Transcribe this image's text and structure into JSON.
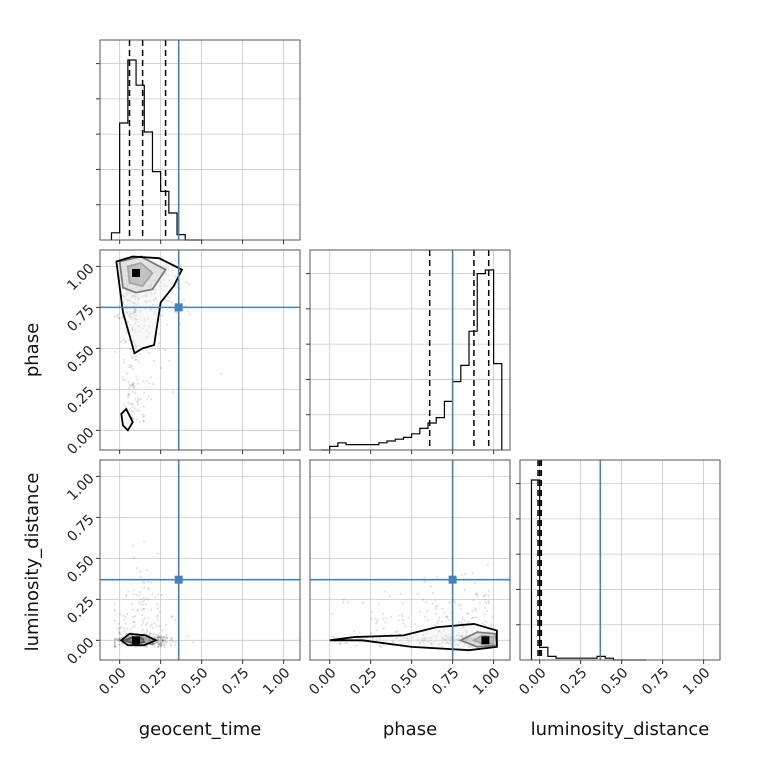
{
  "chart_data": {
    "type": "corner",
    "parameters": [
      "geocent_time",
      "phase",
      "luminosity_distance"
    ],
    "axis_labels": {
      "geocent_time": "geocent_time",
      "phase": "phase",
      "luminosity_distance": "luminosity_distance"
    },
    "ticks": {
      "values": [
        0.0,
        0.25,
        0.5,
        0.75,
        1.0
      ],
      "labels": [
        "0.00",
        "0.25",
        "0.50",
        "0.75",
        "1.00"
      ]
    },
    "range": [
      -0.12,
      1.1
    ],
    "grid": true,
    "truth": {
      "geocent_time": 0.36,
      "phase": 0.75,
      "luminosity_distance": 0.37
    },
    "truth_color": "#4682b4",
    "line_color": "#000000",
    "histograms": [
      {
        "parameter": "geocent_time",
        "bin_edges": [
          -0.05,
          0.0,
          0.05,
          0.1,
          0.15,
          0.2,
          0.25,
          0.3,
          0.35,
          0.4,
          0.45,
          0.5
        ],
        "counts": [
          0.04,
          0.65,
          1.0,
          0.86,
          0.6,
          0.38,
          0.27,
          0.15,
          0.03,
          0.0,
          0.0
        ],
        "quantiles": [
          0.06,
          0.14,
          0.28
        ]
      },
      {
        "parameter": "phase",
        "bin_edges": [
          -0.05,
          0.0,
          0.05,
          0.1,
          0.15,
          0.2,
          0.25,
          0.3,
          0.35,
          0.4,
          0.45,
          0.5,
          0.55,
          0.6,
          0.65,
          0.7,
          0.75,
          0.8,
          0.85,
          0.9,
          0.95,
          1.0,
          1.05
        ],
        "counts": [
          0.0,
          0.02,
          0.04,
          0.03,
          0.03,
          0.03,
          0.03,
          0.04,
          0.05,
          0.06,
          0.07,
          0.09,
          0.12,
          0.15,
          0.18,
          0.27,
          0.38,
          0.47,
          0.66,
          0.98,
          1.0,
          0.48
        ],
        "quantiles": [
          0.61,
          0.88,
          0.97
        ]
      },
      {
        "parameter": "luminosity_distance",
        "bin_edges": [
          -0.05,
          0.0,
          0.05,
          0.1,
          0.15,
          0.2,
          0.25,
          0.3,
          0.35,
          0.4,
          0.45,
          0.5,
          0.55,
          0.6,
          0.65
        ],
        "counts": [
          1.0,
          0.07,
          0.02,
          0.01,
          0.01,
          0.01,
          0.01,
          0.01,
          0.02,
          0.01,
          0.0,
          0.0,
          0.0,
          0.0
        ],
        "quantiles": [
          -0.01,
          0.0,
          0.01
        ]
      }
    ],
    "joint_distributions": [
      {
        "x": "geocent_time",
        "y": "phase",
        "peak": [
          0.1,
          0.96
        ],
        "contours": [
          [
            [
              0.06,
              0.9
            ],
            [
              0.14,
              0.88
            ],
            [
              0.2,
              0.96
            ],
            [
              0.13,
              1.02
            ],
            [
              0.05,
              1.0
            ],
            [
              0.06,
              0.9
            ]
          ],
          [
            [
              0.02,
              0.87
            ],
            [
              0.1,
              0.84
            ],
            [
              0.2,
              0.86
            ],
            [
              0.28,
              0.98
            ],
            [
              0.13,
              1.06
            ],
            [
              0.0,
              1.03
            ],
            [
              0.02,
              0.87
            ]
          ],
          [
            [
              -0.02,
              1.03
            ],
            [
              0.02,
              0.72
            ],
            [
              0.06,
              0.58
            ],
            [
              0.09,
              0.47
            ],
            [
              0.14,
              0.5
            ],
            [
              0.21,
              0.52
            ],
            [
              0.25,
              0.78
            ],
            [
              0.33,
              0.88
            ],
            [
              0.38,
              0.98
            ],
            [
              0.24,
              1.05
            ],
            [
              0.08,
              1.06
            ],
            [
              -0.02,
              1.03
            ]
          ],
          [
            [
              0.01,
              0.1
            ],
            [
              0.04,
              0.13
            ],
            [
              0.08,
              0.05
            ],
            [
              0.05,
              0.0
            ],
            [
              0.02,
              0.03
            ],
            [
              0.01,
              0.1
            ]
          ]
        ]
      },
      {
        "x": "geocent_time",
        "y": "luminosity_distance",
        "peak": [
          0.1,
          0.0
        ],
        "contours": [
          [
            [
              0.03,
              0.0
            ],
            [
              0.08,
              0.02
            ],
            [
              0.14,
              0.01
            ],
            [
              0.15,
              -0.01
            ],
            [
              0.09,
              -0.02
            ],
            [
              0.03,
              0.0
            ]
          ],
          [
            [
              0.01,
              0.0
            ],
            [
              0.06,
              0.04
            ],
            [
              0.16,
              0.03
            ],
            [
              0.22,
              0.0
            ],
            [
              0.15,
              -0.03
            ],
            [
              0.05,
              -0.03
            ],
            [
              0.01,
              0.0
            ]
          ]
        ]
      },
      {
        "x": "phase",
        "y": "luminosity_distance",
        "peak": [
          0.95,
          0.0
        ],
        "contours": [
          [
            [
              0.88,
              0.0
            ],
            [
              0.93,
              0.03
            ],
            [
              1.0,
              0.02
            ],
            [
              1.0,
              -0.02
            ],
            [
              0.93,
              -0.02
            ],
            [
              0.88,
              0.0
            ]
          ],
          [
            [
              0.8,
              0.0
            ],
            [
              0.9,
              0.05
            ],
            [
              1.01,
              0.04
            ],
            [
              1.02,
              -0.03
            ],
            [
              0.9,
              -0.04
            ],
            [
              0.8,
              0.0
            ]
          ],
          [
            [
              0.0,
              0.0
            ],
            [
              0.15,
              0.02
            ],
            [
              0.45,
              0.03
            ],
            [
              0.65,
              0.08
            ],
            [
              0.88,
              0.1
            ],
            [
              1.02,
              0.06
            ],
            [
              1.02,
              -0.04
            ],
            [
              0.85,
              -0.06
            ],
            [
              0.5,
              -0.04
            ],
            [
              0.2,
              0.0
            ],
            [
              0.0,
              0.0
            ]
          ]
        ]
      }
    ]
  }
}
